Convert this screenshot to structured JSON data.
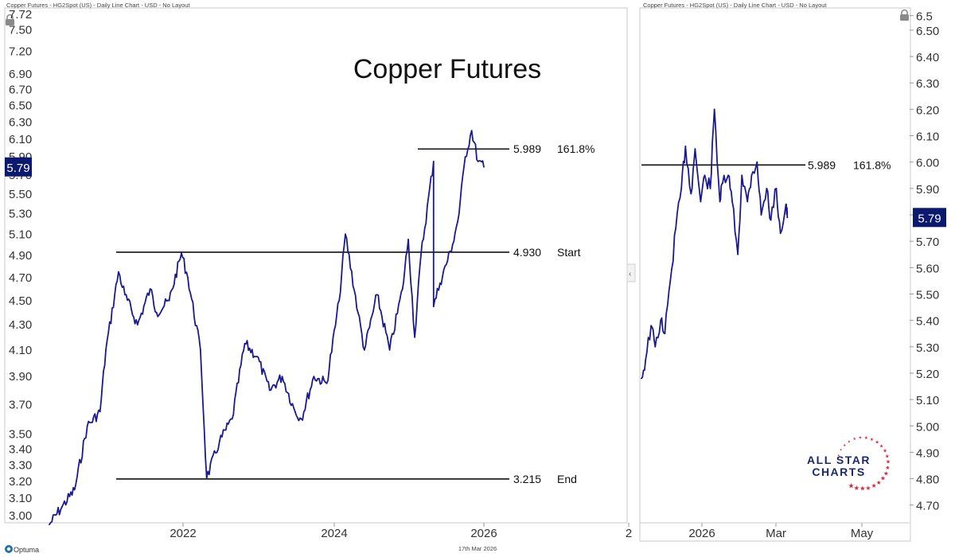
{
  "header": {
    "left_caption": "Copper Futures - HG2Spot (US) - Daily Line Chart - USD - No Layout",
    "right_caption": "Copper Futures - HG2Spot (US) - Daily Line Chart - USD - No Layout"
  },
  "footer": {
    "brand": "Optuma",
    "date": "17th Mar 2026"
  },
  "logo": {
    "line1": "ALL STAR",
    "line2": "CHARTS"
  },
  "icons": {
    "lock": "lock-icon",
    "collapse": "chevron-left-icon",
    "brand": "optuma-logo-icon"
  },
  "colors": {
    "line": "#1a1a8c",
    "current_badge": "#0b1a6e",
    "logo_text": "#1b2a6b",
    "logo_stars": "#d42a3a"
  },
  "chart_data": [
    {
      "type": "line",
      "title": "Copper Futures",
      "x_tick_labels": [
        "2022",
        "2024",
        "2026",
        "2"
      ],
      "y_scale": "log",
      "y_tick_labels": [
        "3.00",
        "3.10",
        "3.20",
        "3.30",
        "3.40",
        "3.50",
        "3.70",
        "3.90",
        "4.10",
        "4.30",
        "4.50",
        "4.70",
        "4.90",
        "5.10",
        "5.30",
        "5.50",
        "5.70",
        "5.90",
        "6.10",
        "6.30",
        "6.50",
        "6.70",
        "6.90",
        "7.20",
        "7.50",
        "7.72"
      ],
      "ylim": [
        2.96,
        7.72
      ],
      "current_value": "5.79",
      "horizontal_lines": [
        {
          "value": "5.989",
          "label": "161.8%"
        },
        {
          "value": "4.930",
          "label": "Start"
        },
        {
          "value": "3.215",
          "label": "End"
        }
      ],
      "series": [
        {
          "x": [
            "2020-06",
            "2020-08",
            "2020-10",
            "2020-12",
            "2021-02",
            "2021-03",
            "2021-05",
            "2021-06",
            "2021-08",
            "2021-10",
            "2021-11",
            "2022-01",
            "2022-03",
            "2022-04",
            "2022-06",
            "2022-07",
            "2022-09",
            "2022-11",
            "2023-01",
            "2023-03",
            "2023-05",
            "2023-07",
            "2023-09",
            "2023-10",
            "2023-12",
            "2024-02",
            "2024-04",
            "2024-05",
            "2024-07",
            "2024-08",
            "2024-10",
            "2024-12",
            "2025-02",
            "2025-03",
            "2025-04",
            "2025-05",
            "2025-07",
            "2025-07",
            "2025-08",
            "2025-10",
            "2025-11",
            "2025-12",
            "2026-01",
            "2026-02",
            "2026-03"
          ],
          "y": [
            2.95,
            3.05,
            3.15,
            3.55,
            3.65,
            4.1,
            4.75,
            4.55,
            4.3,
            4.6,
            4.4,
            4.5,
            4.92,
            4.7,
            4.1,
            3.22,
            3.45,
            3.6,
            4.15,
            4.05,
            3.8,
            3.9,
            3.65,
            3.6,
            3.9,
            3.85,
            4.5,
            5.1,
            4.4,
            4.1,
            4.55,
            4.1,
            4.6,
            5.05,
            4.2,
            4.9,
            5.85,
            4.45,
            4.65,
            5.0,
            5.3,
            5.9,
            6.2,
            5.85,
            5.79
          ]
        }
      ]
    },
    {
      "type": "line",
      "x_tick_labels": [
        "2026",
        "Mar",
        "May"
      ],
      "y_scale": "linear",
      "y_tick_labels": [
        "4.70",
        "4.80",
        "4.90",
        "5.00",
        "5.10",
        "5.20",
        "5.30",
        "5.40",
        "5.50",
        "5.60",
        "5.70",
        "5.80",
        "5.90",
        "6.00",
        "6.10",
        "6.20",
        "6.30",
        "6.40",
        "6.50",
        "6.5"
      ],
      "ylim": [
        4.66,
        6.56
      ],
      "current_value": "5.79",
      "horizontal_lines": [
        {
          "value": "5.989",
          "label": "161.8%"
        }
      ],
      "series": [
        {
          "x": [
            "2025-12-01",
            "2025-12-04",
            "2025-12-08",
            "2025-12-11",
            "2025-12-15",
            "2025-12-18",
            "2025-12-22",
            "2025-12-26",
            "2025-12-30",
            "2026-01-02",
            "2026-01-06",
            "2026-01-09",
            "2026-01-13",
            "2026-01-16",
            "2026-01-20",
            "2026-01-23",
            "2026-01-27",
            "2026-01-29",
            "2026-02-02",
            "2026-02-05",
            "2026-02-09",
            "2026-02-12",
            "2026-02-16",
            "2026-02-19",
            "2026-02-23",
            "2026-02-26",
            "2026-03-02",
            "2026-03-05",
            "2026-03-09",
            "2026-03-12",
            "2026-03-16",
            "2026-03-17"
          ],
          "y": [
            5.18,
            5.25,
            5.38,
            5.3,
            5.4,
            5.35,
            5.55,
            5.75,
            5.9,
            6.06,
            5.88,
            6.05,
            5.85,
            5.95,
            5.9,
            6.2,
            5.85,
            5.92,
            5.95,
            5.85,
            5.65,
            5.95,
            5.85,
            5.95,
            6.0,
            5.8,
            5.9,
            5.78,
            5.9,
            5.73,
            5.84,
            5.79
          ]
        }
      ]
    }
  ]
}
